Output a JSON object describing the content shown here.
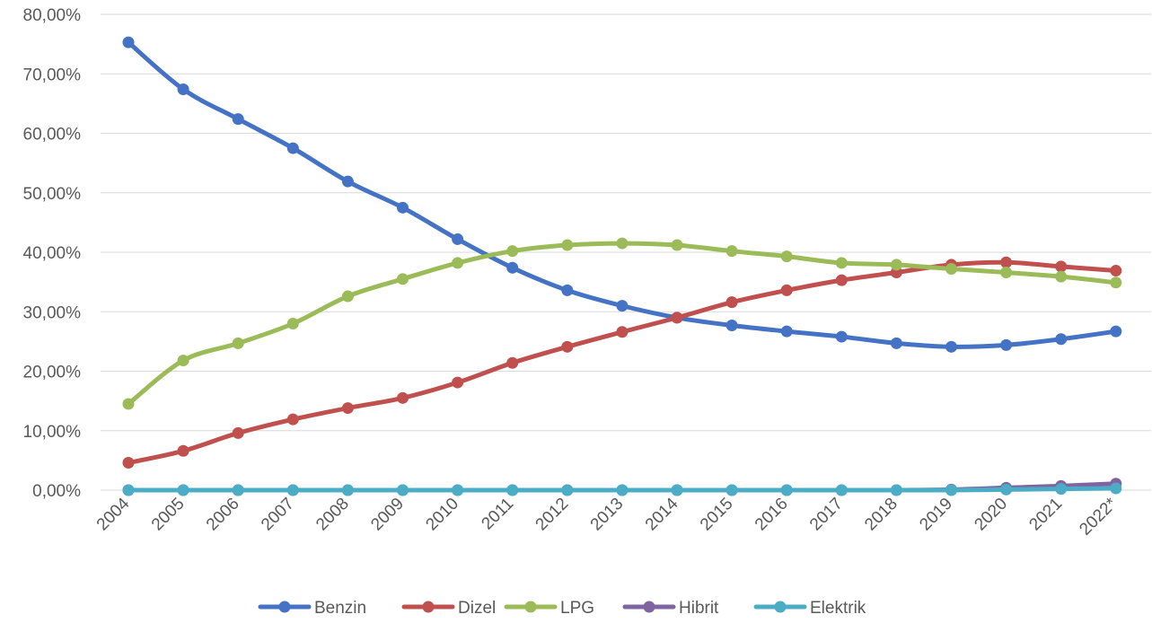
{
  "chart_data": {
    "type": "line",
    "title": "",
    "xlabel": "",
    "ylabel": "",
    "categories": [
      "2004",
      "2005",
      "2006",
      "2007",
      "2008",
      "2009",
      "2010",
      "2011",
      "2012",
      "2013",
      "2014",
      "2015",
      "2016",
      "2017",
      "2018",
      "2019",
      "2020",
      "2021",
      "2022*"
    ],
    "ylim": [
      0,
      80
    ],
    "y_ticks": [
      0,
      10,
      20,
      30,
      40,
      50,
      60,
      70,
      80
    ],
    "y_tick_labels": [
      "0,00%",
      "10,00%",
      "20,00%",
      "30,00%",
      "40,00%",
      "50,00%",
      "60,00%",
      "70,00%",
      "80,00%"
    ],
    "grid": true,
    "legend_position": "bottom",
    "series": [
      {
        "name": "Benzin",
        "color": "#4472c4",
        "values": [
          75.3,
          67.4,
          62.4,
          57.5,
          51.9,
          47.5,
          42.2,
          37.4,
          33.6,
          31.0,
          29.0,
          27.7,
          26.7,
          25.8,
          24.7,
          24.1,
          24.4,
          25.4,
          26.7
        ]
      },
      {
        "name": "Dizel",
        "color": "#c0504d",
        "values": [
          4.6,
          6.6,
          9.6,
          11.9,
          13.8,
          15.5,
          18.1,
          21.4,
          24.1,
          26.6,
          29.0,
          31.6,
          33.6,
          35.3,
          36.6,
          37.9,
          38.3,
          37.6,
          36.9
        ]
      },
      {
        "name": "LPG",
        "color": "#9bbb59",
        "values": [
          14.5,
          21.8,
          24.7,
          28.0,
          32.6,
          35.5,
          38.2,
          40.2,
          41.2,
          41.5,
          41.2,
          40.2,
          39.3,
          38.2,
          37.9,
          37.2,
          36.6,
          35.9,
          34.9
        ]
      },
      {
        "name": "Hibrit",
        "color": "#8064a2",
        "values": [
          0.0,
          0.0,
          0.0,
          0.0,
          0.0,
          0.0,
          0.0,
          0.0,
          0.0,
          0.0,
          0.0,
          0.0,
          0.0,
          0.0,
          0.0,
          0.1,
          0.4,
          0.7,
          1.1
        ]
      },
      {
        "name": "Elektrik",
        "color": "#4bacc6",
        "values": [
          0.0,
          0.0,
          0.0,
          0.0,
          0.0,
          0.0,
          0.0,
          0.0,
          0.0,
          0.0,
          0.0,
          0.0,
          0.0,
          0.0,
          0.0,
          0.0,
          0.1,
          0.2,
          0.3
        ]
      }
    ]
  }
}
